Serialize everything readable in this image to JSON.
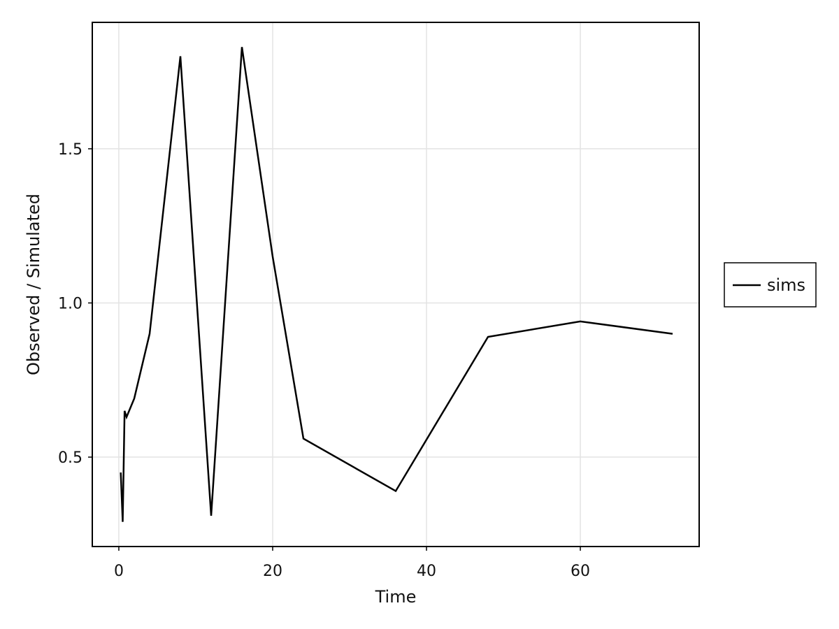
{
  "chart_data": {
    "type": "line",
    "title": "",
    "xlabel": "Time",
    "ylabel": "Observed / Simulated",
    "xlim": [
      -3.45,
      75.45
    ],
    "ylim": [
      0.21,
      1.91
    ],
    "xticks": [
      0,
      20,
      40,
      60
    ],
    "xtick_labels": [
      "0",
      "20",
      "40",
      "60"
    ],
    "yticks": [
      0.5,
      1.0,
      1.5
    ],
    "ytick_labels": [
      "0.5",
      "1.0",
      "1.5"
    ],
    "grid": true,
    "legend_position": "right",
    "series": [
      {
        "name": "sims",
        "color": "#000000",
        "x": [
          0.25,
          0.5,
          0.75,
          1,
          2,
          4,
          8,
          12,
          16,
          20,
          24,
          36,
          48,
          60,
          72
        ],
        "y": [
          0.45,
          0.29,
          0.65,
          0.63,
          0.69,
          0.9,
          1.8,
          0.31,
          1.83,
          1.15,
          0.56,
          0.39,
          0.89,
          0.94,
          0.9
        ]
      }
    ]
  }
}
